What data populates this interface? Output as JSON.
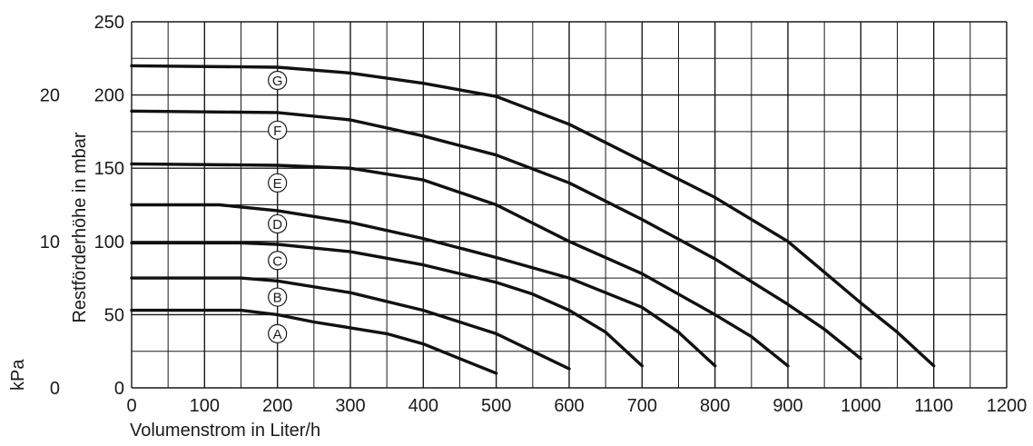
{
  "chart_data": {
    "type": "line",
    "title": "",
    "xlabel": "Volumenstrom in Liter/h",
    "ylabel": "Restförderhöhe in mbar",
    "y2label": "kPa",
    "xlim": [
      0,
      1200
    ],
    "ylim": [
      0,
      250
    ],
    "x_ticks": [
      "0",
      "100",
      "200",
      "300",
      "400",
      "500",
      "600",
      "700",
      "800",
      "900",
      "1000",
      "1100",
      "1200"
    ],
    "y_ticks": [
      "0",
      "50",
      "100",
      "150",
      "200",
      "250"
    ],
    "y2_ticks": [
      {
        "value": 0,
        "label": "0"
      },
      {
        "value": 100,
        "label": "10"
      },
      {
        "value": 200,
        "label": "20"
      }
    ],
    "grid": true,
    "series": [
      {
        "name": "A",
        "label_pos": [
          200,
          37
        ],
        "x": [
          0,
          150,
          200,
          250,
          300,
          350,
          400,
          450,
          500
        ],
        "y": [
          53,
          53,
          50,
          45,
          41,
          37,
          30,
          20,
          10
        ]
      },
      {
        "name": "B",
        "label_pos": [
          200,
          62
        ],
        "x": [
          0,
          150,
          200,
          300,
          400,
          450,
          500,
          550,
          600
        ],
        "y": [
          75,
          75,
          73,
          65,
          53,
          45,
          37,
          25,
          13
        ]
      },
      {
        "name": "C",
        "label_pos": [
          200,
          87
        ],
        "x": [
          0,
          150,
          200,
          300,
          400,
          500,
          550,
          600,
          650,
          700
        ],
        "y": [
          99,
          99,
          98,
          93,
          84,
          72,
          64,
          53,
          38,
          15
        ]
      },
      {
        "name": "D",
        "label_pos": [
          200,
          112
        ],
        "x": [
          0,
          120,
          200,
          300,
          400,
          500,
          600,
          700,
          750,
          800
        ],
        "y": [
          125,
          125,
          121,
          113,
          102,
          89,
          75,
          55,
          38,
          15
        ]
      },
      {
        "name": "E",
        "label_pos": [
          200,
          140
        ],
        "x": [
          0,
          200,
          300,
          400,
          500,
          600,
          700,
          800,
          850,
          900
        ],
        "y": [
          153,
          152,
          150,
          142,
          125,
          100,
          78,
          50,
          35,
          15
        ]
      },
      {
        "name": "F",
        "label_pos": [
          200,
          176
        ],
        "x": [
          0,
          200,
          300,
          400,
          500,
          600,
          700,
          800,
          900,
          950,
          1000
        ],
        "y": [
          189,
          188,
          183,
          172,
          159,
          140,
          115,
          88,
          57,
          40,
          20
        ]
      },
      {
        "name": "G",
        "label_pos": [
          200,
          210
        ],
        "x": [
          0,
          200,
          300,
          400,
          500,
          600,
          700,
          800,
          900,
          1000,
          1050,
          1100
        ],
        "y": [
          220,
          219,
          215,
          208,
          199,
          180,
          155,
          130,
          100,
          58,
          38,
          15
        ]
      }
    ]
  }
}
